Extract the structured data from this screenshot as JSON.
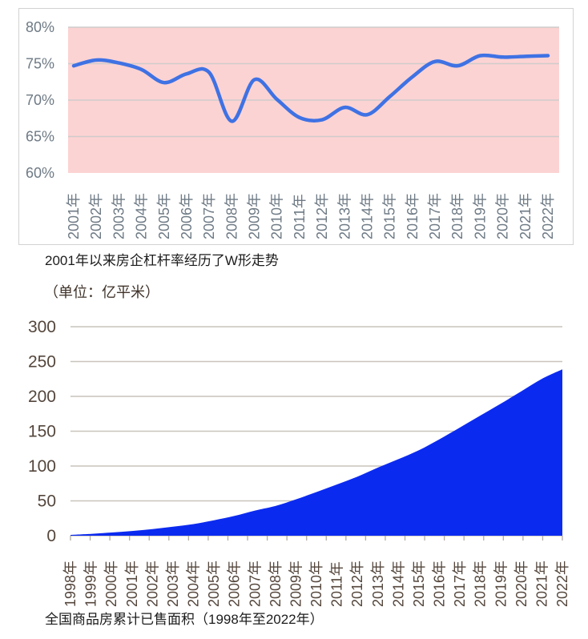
{
  "captions": {
    "top_chart_caption": "2001年以来房企杠杆率经历了W形走势",
    "bottom_chart_unit": "（单位：亿平米）",
    "bottom_chart_caption": "全国商品房累计已售面积（1998年至2022年）"
  },
  "colors": {
    "panel_border": "#d2d2d2",
    "leverage_line": "#3f72e4",
    "leverage_plot_bg": "#fcd3d3",
    "leverage_grid": "#cfcccc",
    "leverage_axis_text": "#6e7a85",
    "area_fill": "#0b2af0",
    "area_grid": "#c9c4bc",
    "area_axis_text": "#54463c",
    "area_tick": "#b3aca4"
  },
  "chart_data": [
    {
      "type": "line",
      "title": "房企杠杆率",
      "categories": [
        "2001年",
        "2002年",
        "2003年",
        "2004年",
        "2005年",
        "2006年",
        "2007年",
        "2008年",
        "2009年",
        "2010年",
        "2011年",
        "2012年",
        "2013年",
        "2014年",
        "2015年",
        "2016年",
        "2017年",
        "2018年",
        "2019年",
        "2020年",
        "2021年",
        "2022年"
      ],
      "values": [
        74.7,
        75.5,
        75.1,
        74.2,
        72.4,
        73.6,
        73.8,
        67.1,
        72.8,
        70.1,
        67.6,
        67.3,
        69.0,
        68.0,
        70.5,
        73.2,
        75.3,
        74.7,
        76.1,
        75.9,
        76.0,
        76.1
      ],
      "xlabel": "",
      "ylabel": "",
      "ylim": [
        60,
        80
      ],
      "yticks": [
        "80%",
        "75%",
        "70%",
        "65%",
        "60%"
      ],
      "ytick_values": [
        80,
        75,
        70,
        65,
        60
      ],
      "grid": "horizontal",
      "legend": "none"
    },
    {
      "type": "area",
      "title": "全国商品房累计已售面积",
      "unit": "亿平米",
      "categories": [
        "1998年",
        "1999年",
        "2000年",
        "2001年",
        "2002年",
        "2003年",
        "2004年",
        "2005年",
        "2006年",
        "2007年",
        "2008年",
        "2009年",
        "2010年",
        "2011年",
        "2012年",
        "2013年",
        "2014年",
        "2015年",
        "2016年",
        "2017年",
        "2018年",
        "2019年",
        "2020年",
        "2021年",
        "2022年"
      ],
      "values": [
        1.2,
        2.7,
        4.6,
        6.8,
        9.5,
        12.9,
        16.7,
        22.2,
        28.4,
        36.1,
        42.7,
        52.2,
        62.7,
        73.6,
        84.7,
        97.8,
        109.9,
        122.7,
        138.4,
        155.3,
        172.5,
        189.7,
        207.3,
        225.2,
        238.8
      ],
      "xlabel": "",
      "ylabel": "",
      "ylim": [
        0,
        300
      ],
      "yticks": [
        "300",
        "250",
        "200",
        "150",
        "100",
        "50",
        "0"
      ],
      "ytick_values": [
        300,
        250,
        200,
        150,
        100,
        50,
        0
      ],
      "grid": "horizontal",
      "legend": "none"
    }
  ]
}
